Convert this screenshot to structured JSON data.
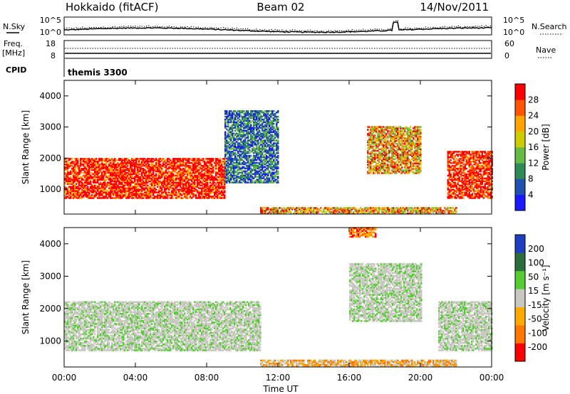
{
  "header": {
    "station": "Hokkaido (fitACF)",
    "beam": "Beam 02",
    "date": "14/Nov/2011"
  },
  "status_panels": {
    "nsky_label": "N.Sky",
    "nsearch_label": "N.Search",
    "freq_label_line1": "Freq.",
    "freq_label_line2": "[MHz]",
    "nave_label": "Nave",
    "cpid_label": "CPID",
    "cpid_value": "themis 3300",
    "noise_ticks": [
      "10^5",
      "10^0"
    ],
    "freq_ticks": [
      "18",
      "8"
    ],
    "nave_ticks": [
      "60",
      "0"
    ]
  },
  "time_axis": {
    "label": "Time UT",
    "ticks": [
      "00:00",
      "04:00",
      "08:00",
      "12:00",
      "16:00",
      "20:00",
      "00:00"
    ]
  },
  "colors": {
    "power_scale": [
      "#1a1aff",
      "#2050b0",
      "#2e8b57",
      "#66bb44",
      "#cccc00",
      "#ffa500",
      "#ff5500",
      "#ff0000"
    ],
    "velocity_scale": [
      "#1f3fbf",
      "#2b6e3c",
      "#55cc33",
      "#c8c8c0",
      "#ffaa00",
      "#ff7700",
      "#ff0000"
    ],
    "ground_scatter_gray": "#c8c8c0"
  },
  "chart_data": [
    {
      "type": "heatmap",
      "panel": "power",
      "ylabel": "Slant Range [km]",
      "yticks": [
        "1000",
        "2000",
        "3000",
        "4000"
      ],
      "ylim": [
        200,
        4500
      ],
      "xlim_hours": [
        0,
        24
      ],
      "colorbar_label": "Power [dB]",
      "colorbar_ticks": [
        "4",
        "8",
        "12",
        "16",
        "20",
        "24",
        "28"
      ],
      "features": [
        {
          "t0": 0,
          "t1": 9,
          "r0": 700,
          "r1": 2000,
          "level": "high"
        },
        {
          "t0": 21.5,
          "t1": 24,
          "r0": 700,
          "r1": 2200,
          "level": "high"
        },
        {
          "t0": 17,
          "t1": 20,
          "r0": 1500,
          "r1": 3000,
          "level": "mixed"
        },
        {
          "t0": 9,
          "t1": 12,
          "r0": 1200,
          "r1": 3500,
          "level": "low"
        },
        {
          "t0": 11,
          "t1": 22,
          "r0": 200,
          "r1": 400,
          "level": "mixed"
        }
      ]
    },
    {
      "type": "heatmap",
      "panel": "velocity",
      "ylabel": "Slant Range [km]",
      "yticks": [
        "1000",
        "2000",
        "3000",
        "4000"
      ],
      "ylim": [
        200,
        4500
      ],
      "xlim_hours": [
        0,
        24
      ],
      "colorbar_label": "Velocity [m s⁻¹]",
      "colorbar_ticks": [
        "200",
        "100",
        "50",
        "15",
        "-15",
        "-50",
        "-100",
        "-200"
      ],
      "features": [
        {
          "t0": 0,
          "t1": 11,
          "r0": 700,
          "r1": 2200,
          "level": "ground"
        },
        {
          "t0": 21,
          "t1": 24,
          "r0": 700,
          "r1": 2200,
          "level": "ground"
        },
        {
          "t0": 16,
          "t1": 20,
          "r0": 1600,
          "r1": 3400,
          "level": "ground"
        },
        {
          "t0": 11,
          "t1": 22,
          "r0": 200,
          "r1": 400,
          "level": "negative"
        },
        {
          "t0": 16,
          "t1": 17.5,
          "r0": 4200,
          "r1": 4500,
          "level": "negative-strong"
        }
      ]
    }
  ]
}
